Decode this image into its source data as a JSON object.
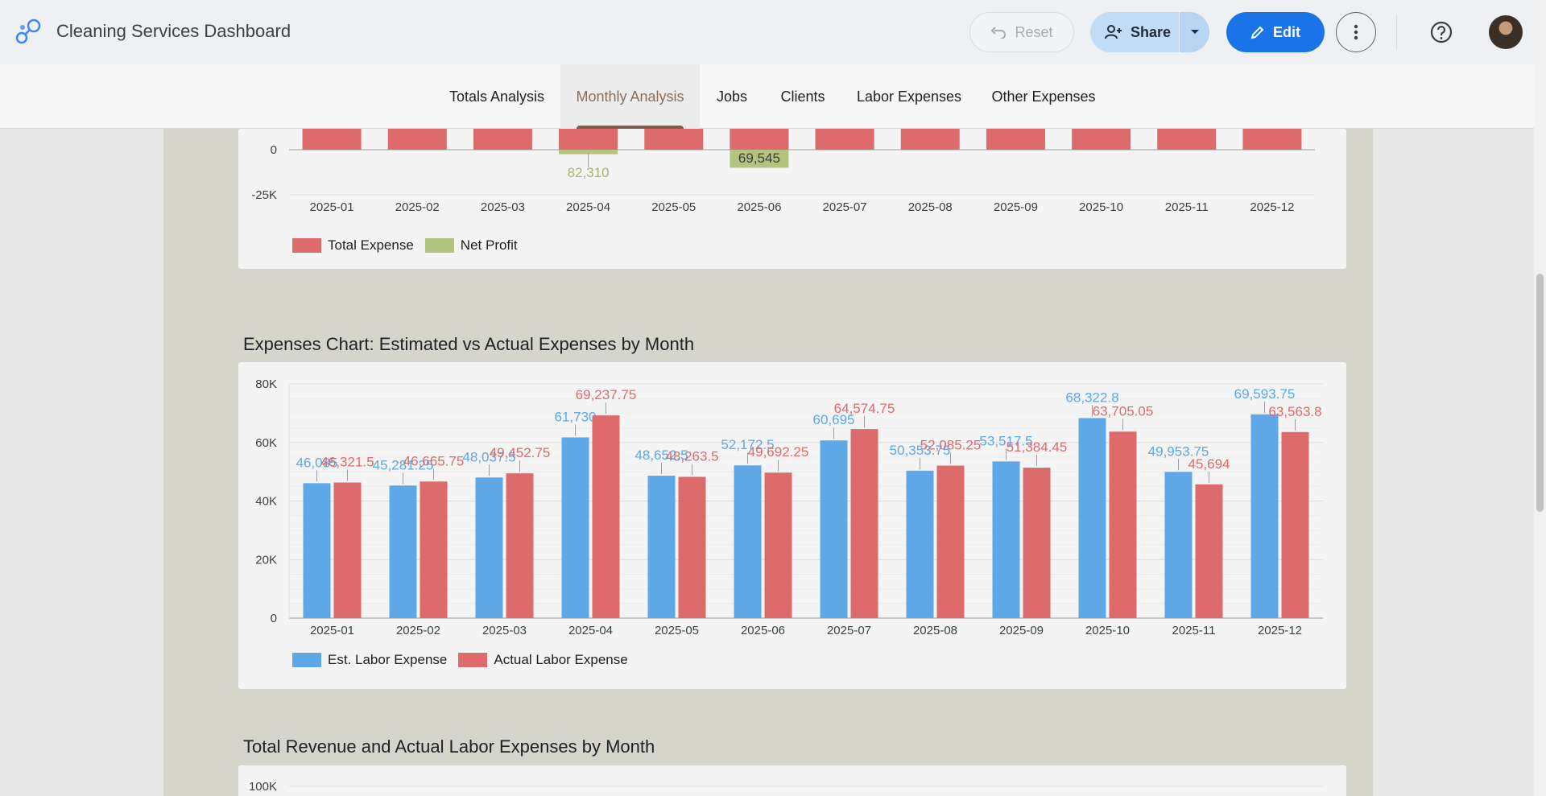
{
  "app": {
    "title": "Cleaning Services Dashboard"
  },
  "header": {
    "reset_label": "Reset",
    "share_label": "Share",
    "edit_label": "Edit",
    "accent": "#1a73e8"
  },
  "tabs": [
    {
      "label": "Totals Analysis",
      "active": false
    },
    {
      "label": "Monthly Analysis",
      "active": true
    },
    {
      "label": "Jobs",
      "active": false
    },
    {
      "label": "Clients",
      "active": false
    },
    {
      "label": "Labor Expenses",
      "active": false
    },
    {
      "label": "Other Expenses",
      "active": false
    }
  ],
  "sections": {
    "expenses_title": "Expenses Chart: Estimated vs Actual Expenses by Month",
    "revenue_title": "Total Revenue and Actual Labor Expenses by Month"
  },
  "chart_data": [
    {
      "type": "bar",
      "note_visible": "partial, scrolled",
      "categories": [
        "2025-01",
        "2025-02",
        "2025-03",
        "2025-04",
        "2025-05",
        "2025-06",
        "2025-07",
        "2025-08",
        "2025-09",
        "2025-10",
        "2025-11",
        "2025-12"
      ],
      "y_ticks": [
        "0",
        "-25K"
      ],
      "series": [
        {
          "name": "Total Expense",
          "color": "#de6b6b"
        },
        {
          "name": "Net Profit",
          "color": "#b2c47e",
          "values": [
            null,
            null,
            null,
            -2500,
            null,
            -10000,
            null,
            null,
            null,
            null,
            null,
            null
          ]
        }
      ],
      "data_labels": [
        {
          "category": "2025-04",
          "text": "82,310",
          "series": "Net Profit"
        },
        {
          "category": "2025-06",
          "text": "69,545",
          "series": "Net Profit"
        }
      ],
      "legend_position": "bottom-left"
    },
    {
      "type": "bar",
      "categories": [
        "2025-01",
        "2025-02",
        "2025-03",
        "2025-04",
        "2025-05",
        "2025-06",
        "2025-07",
        "2025-08",
        "2025-09",
        "2025-10",
        "2025-11",
        "2025-12"
      ],
      "y_ticks": [
        "0",
        "20K",
        "40K",
        "60K",
        "80K"
      ],
      "ylim": [
        0,
        80000
      ],
      "grid": true,
      "legend_position": "bottom-left",
      "series": [
        {
          "name": "Est. Labor Expense",
          "color": "#5ea8e7",
          "values": [
            46085,
            45281.25,
            48037.5,
            61730,
            48652.5,
            52172.5,
            60695,
            50353.75,
            53517.5,
            68322.8,
            49953.75,
            69593.75
          ],
          "labels": [
            "46,085",
            "45,281.25",
            "48,037.5",
            "61,730",
            "48,652.5",
            "52,172.5",
            "60,695",
            "50,353.75",
            "53,517.5",
            "68,322.8",
            "49,953.75",
            "69,593.75"
          ]
        },
        {
          "name": "Actual Labor Expense",
          "color": "#de6b6b",
          "values": [
            46321.5,
            46665.75,
            49452.75,
            69237.75,
            48263.5,
            49692.25,
            64574.75,
            52085.25,
            51384.45,
            63705.05,
            45694,
            63563.8
          ],
          "labels": [
            "46,321.5",
            "46,665.75",
            "49,452.75",
            "69,237.75",
            "48,263.5",
            "49,692.25",
            "64,574.75",
            "52,085.25",
            "51,384.45",
            "63,705.05",
            "45,694",
            "63,563.8"
          ]
        }
      ]
    },
    {
      "type": "bar",
      "note_visible": "partial, top only",
      "y_ticks": [
        "100K"
      ]
    }
  ]
}
